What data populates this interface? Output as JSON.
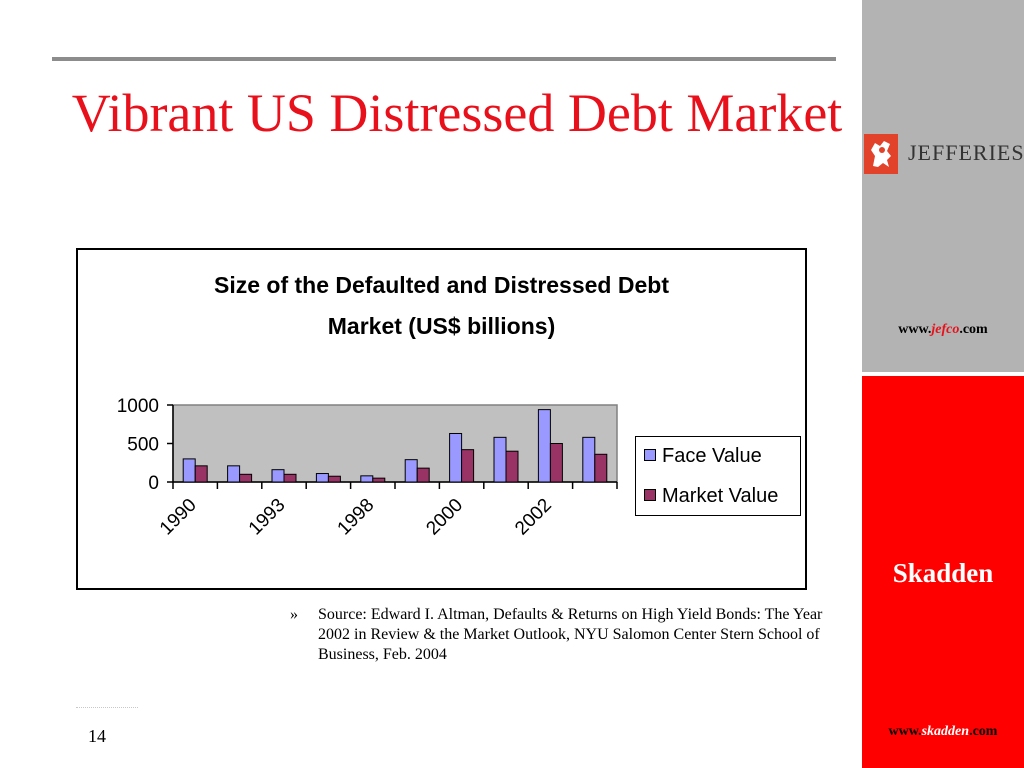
{
  "slide": {
    "title": "Vibrant US Distressed Debt Market",
    "page_number": "14",
    "source_bullet": "»",
    "source_text": "Source: Edward I. Altman, Defaults & Returns on High Yield Bonds: The Year 2002 in Review & the Market Outlook, NYU Salomon Center Stern School of Business, Feb. 2004"
  },
  "sidebar": {
    "jefferies": {
      "logo_text": "JEFFERIES",
      "url_prefix": "www.",
      "url_highlight": "jefco",
      "url_suffix": ".com"
    },
    "skadden": {
      "name": "Skadden",
      "url_prefix": "www.",
      "url_highlight": "skadden",
      "url_suffix": ".com"
    },
    "colors": {
      "gray_panel": "#b3b3b3",
      "red_panel": "#ff0000"
    }
  },
  "chart_data": {
    "type": "bar",
    "title_line1": "Size of the Defaulted and Distressed Debt",
    "title_line2": "Market (US$ billions)",
    "categories": [
      "1990",
      "",
      "1993",
      "",
      "1998",
      "",
      "2000",
      "",
      "2002",
      ""
    ],
    "series": [
      {
        "name": "Face Value",
        "color": "#9999ff",
        "values": [
          300,
          210,
          160,
          110,
          80,
          290,
          630,
          580,
          940,
          580
        ]
      },
      {
        "name": "Market Value",
        "color": "#993366",
        "values": [
          210,
          100,
          100,
          75,
          50,
          180,
          420,
          400,
          500,
          360
        ]
      }
    ],
    "yticks": [
      0,
      500,
      1000
    ],
    "ylim": [
      0,
      1000
    ],
    "plot_background": "#c0c0c0",
    "legend_position": "right",
    "grid": false
  }
}
